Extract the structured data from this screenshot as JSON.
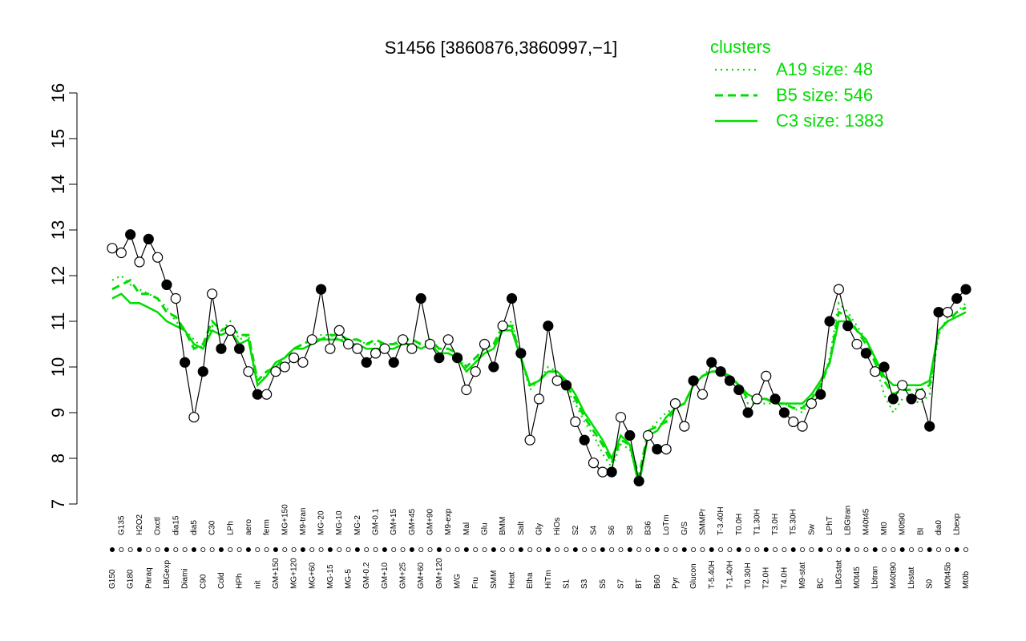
{
  "chart_data": {
    "type": "line",
    "title": "S1456 [3860876,3860997,−1]",
    "ylim": [
      7,
      16
    ],
    "yticks": [
      "7",
      "8",
      "9",
      "10",
      "11",
      "12",
      "13",
      "14",
      "15",
      "16"
    ],
    "categories": [
      "G150",
      "G135",
      "G180",
      "H2O2",
      "Paraq",
      "Oxctl",
      "LBGexp",
      "dia15",
      "Diami",
      "dia5",
      "C90",
      "C30",
      "Cold",
      "LPh",
      "HPh",
      "aero",
      "nit",
      "ferm",
      "GM+150",
      "MG+150",
      "MG+120",
      "M9-tran",
      "MG+60",
      "MG-20",
      "MG-15",
      "MG-10",
      "MG-5",
      "MG-2",
      "GM-0.2",
      "GM-0.1",
      "GM+10",
      "GM+15",
      "GM+25",
      "GM+45",
      "GM+60",
      "GM+90",
      "GM+120",
      "M9-exp",
      "M/G",
      "Mal",
      "Fru",
      "Glu",
      "SMM",
      "BMM",
      "Heat",
      "Salt",
      "Etha",
      "Gly",
      "HiTm",
      "HiOs",
      "S1",
      "S2",
      "S3",
      "S4",
      "S5",
      "S6",
      "S7",
      "S8",
      "BT",
      "B36",
      "B60",
      "LoTm",
      "Pyr",
      "G/S",
      "Glucon",
      "SMMPr",
      "T-5.40H",
      "T-3.40H",
      "T-1.40H",
      "T0.0H",
      "T0.30H",
      "T1.30H",
      "T2.0H",
      "T3.0H",
      "T4.0H",
      "T5.30H",
      "M9-stat",
      "Sw",
      "BC",
      "LPhT",
      "LBGstat",
      "LBGtran",
      "M0t45",
      "M40t45",
      "Lbtran",
      "Mt0",
      "M40t90",
      "M0t90",
      "Lbstat",
      "BI",
      "S0",
      "dia0",
      "M0t45b",
      "Lbexp",
      "Mt0b"
    ],
    "series": [
      {
        "name": "A19 size: 48",
        "style": "dotted",
        "values": [
          11.9,
          12.0,
          11.8,
          11.7,
          11.6,
          11.5,
          11.3,
          11.0,
          10.8,
          10.6,
          10.4,
          10.9,
          10.8,
          11.0,
          10.6,
          10.7,
          9.7,
          9.8,
          10.1,
          10.2,
          10.4,
          10.5,
          10.6,
          10.7,
          10.7,
          10.6,
          10.6,
          10.6,
          10.5,
          10.5,
          10.5,
          10.5,
          10.5,
          10.5,
          10.5,
          10.5,
          10.4,
          10.4,
          10.3,
          9.9,
          10.1,
          10.4,
          10.5,
          10.9,
          11.0,
          10.2,
          9.5,
          9.7,
          10.0,
          9.9,
          9.5,
          9.2,
          8.8,
          8.5,
          8.1,
          7.8,
          8.3,
          8.2,
          7.5,
          8.6,
          8.8,
          9.0,
          9.1,
          9.2,
          9.6,
          9.8,
          10.0,
          10.0,
          9.8,
          9.6,
          9.2,
          9.2,
          9.2,
          9.2,
          9.2,
          9.1,
          9.0,
          9.3,
          9.6,
          10.2,
          11.4,
          11.2,
          10.9,
          10.6,
          10.1,
          9.4,
          9.0,
          9.3,
          9.3,
          9.2,
          9.4,
          10.7,
          11.1,
          11.2,
          11.4
        ]
      },
      {
        "name": "B5 size: 546",
        "style": "dashed",
        "values": [
          11.7,
          11.8,
          11.9,
          11.6,
          11.6,
          11.5,
          11.2,
          11.1,
          10.8,
          10.4,
          10.5,
          11.0,
          10.8,
          10.9,
          10.7,
          10.7,
          9.7,
          9.9,
          10.0,
          10.2,
          10.4,
          10.5,
          10.6,
          10.6,
          10.7,
          10.7,
          10.6,
          10.6,
          10.5,
          10.6,
          10.5,
          10.5,
          10.6,
          10.6,
          10.5,
          10.6,
          10.4,
          10.4,
          10.3,
          10.0,
          10.2,
          10.4,
          10.5,
          10.9,
          10.9,
          10.2,
          9.6,
          9.7,
          9.9,
          9.9,
          9.6,
          9.3,
          8.9,
          8.6,
          8.3,
          7.9,
          8.4,
          8.3,
          7.6,
          8.6,
          8.7,
          8.8,
          9.1,
          9.2,
          9.6,
          9.8,
          9.9,
          9.9,
          9.8,
          9.6,
          9.3,
          9.3,
          9.3,
          9.2,
          9.2,
          9.1,
          9.1,
          9.3,
          9.6,
          10.1,
          11.2,
          11.1,
          10.8,
          10.5,
          10.1,
          9.7,
          9.4,
          9.5,
          9.5,
          9.5,
          9.6,
          10.8,
          11.0,
          11.2,
          11.3
        ]
      },
      {
        "name": "C3 size: 1383",
        "style": "solid",
        "values": [
          11.5,
          11.6,
          11.4,
          11.4,
          11.3,
          11.2,
          11.0,
          10.9,
          10.8,
          10.5,
          10.4,
          10.8,
          10.7,
          10.8,
          10.5,
          10.6,
          9.6,
          9.8,
          10.1,
          10.2,
          10.4,
          10.4,
          10.5,
          10.6,
          10.6,
          10.6,
          10.5,
          10.5,
          10.4,
          10.4,
          10.4,
          10.4,
          10.5,
          10.5,
          10.4,
          10.5,
          10.3,
          10.3,
          10.2,
          9.9,
          10.1,
          10.3,
          10.4,
          10.8,
          10.8,
          10.2,
          9.6,
          9.7,
          9.9,
          9.9,
          9.7,
          9.4,
          9.0,
          8.7,
          8.4,
          8.0,
          8.5,
          8.3,
          7.4,
          8.5,
          8.6,
          8.9,
          9.1,
          9.2,
          9.6,
          9.8,
          9.9,
          9.9,
          9.8,
          9.6,
          9.4,
          9.3,
          9.3,
          9.2,
          9.2,
          9.2,
          9.2,
          9.4,
          9.7,
          10.1,
          11.0,
          11.0,
          10.8,
          10.6,
          10.2,
          9.8,
          9.6,
          9.6,
          9.6,
          9.6,
          9.7,
          10.8,
          11.0,
          11.1,
          11.2
        ]
      }
    ],
    "points": [
      {
        "v": 12.6,
        "f": "o"
      },
      {
        "v": 12.5,
        "f": "o"
      },
      {
        "v": 12.9,
        "f": "f"
      },
      {
        "v": 12.3,
        "f": "o"
      },
      {
        "v": 12.8,
        "f": "f"
      },
      {
        "v": 12.4,
        "f": "o"
      },
      {
        "v": 11.8,
        "f": "f"
      },
      {
        "v": 11.5,
        "f": "o"
      },
      {
        "v": 10.1,
        "f": "f"
      },
      {
        "v": 8.9,
        "f": "o"
      },
      {
        "v": 9.9,
        "f": "f"
      },
      {
        "v": 11.6,
        "f": "o"
      },
      {
        "v": 10.4,
        "f": "f"
      },
      {
        "v": 10.8,
        "f": "o"
      },
      {
        "v": 10.4,
        "f": "f"
      },
      {
        "v": 9.9,
        "f": "o"
      },
      {
        "v": 9.4,
        "f": "f"
      },
      {
        "v": 9.4,
        "f": "o"
      },
      {
        "v": 9.9,
        "f": "o"
      },
      {
        "v": 10.0,
        "f": "o"
      },
      {
        "v": 10.2,
        "f": "o"
      },
      {
        "v": 10.1,
        "f": "o"
      },
      {
        "v": 10.6,
        "f": "o"
      },
      {
        "v": 11.7,
        "f": "f"
      },
      {
        "v": 10.4,
        "f": "o"
      },
      {
        "v": 10.8,
        "f": "o"
      },
      {
        "v": 10.5,
        "f": "o"
      },
      {
        "v": 10.4,
        "f": "o"
      },
      {
        "v": 10.1,
        "f": "f"
      },
      {
        "v": 10.3,
        "f": "o"
      },
      {
        "v": 10.4,
        "f": "o"
      },
      {
        "v": 10.1,
        "f": "f"
      },
      {
        "v": 10.6,
        "f": "o"
      },
      {
        "v": 10.4,
        "f": "o"
      },
      {
        "v": 11.5,
        "f": "f"
      },
      {
        "v": 10.5,
        "f": "o"
      },
      {
        "v": 10.2,
        "f": "f"
      },
      {
        "v": 10.6,
        "f": "o"
      },
      {
        "v": 10.2,
        "f": "f"
      },
      {
        "v": 9.5,
        "f": "o"
      },
      {
        "v": 9.9,
        "f": "o"
      },
      {
        "v": 10.5,
        "f": "o"
      },
      {
        "v": 10.0,
        "f": "f"
      },
      {
        "v": 10.9,
        "f": "o"
      },
      {
        "v": 11.5,
        "f": "f"
      },
      {
        "v": 10.3,
        "f": "f"
      },
      {
        "v": 8.4,
        "f": "o"
      },
      {
        "v": 9.3,
        "f": "o"
      },
      {
        "v": 10.9,
        "f": "f"
      },
      {
        "v": 9.7,
        "f": "o"
      },
      {
        "v": 9.6,
        "f": "f"
      },
      {
        "v": 8.8,
        "f": "o"
      },
      {
        "v": 8.4,
        "f": "f"
      },
      {
        "v": 7.9,
        "f": "o"
      },
      {
        "v": 7.7,
        "f": "o"
      },
      {
        "v": 7.7,
        "f": "f"
      },
      {
        "v": 8.9,
        "f": "o"
      },
      {
        "v": 8.5,
        "f": "f"
      },
      {
        "v": 7.5,
        "f": "f"
      },
      {
        "v": 8.5,
        "f": "o"
      },
      {
        "v": 8.2,
        "f": "f"
      },
      {
        "v": 8.2,
        "f": "o"
      },
      {
        "v": 9.2,
        "f": "o"
      },
      {
        "v": 8.7,
        "f": "o"
      },
      {
        "v": 9.7,
        "f": "f"
      },
      {
        "v": 9.4,
        "f": "o"
      },
      {
        "v": 10.1,
        "f": "f"
      },
      {
        "v": 9.9,
        "f": "f"
      },
      {
        "v": 9.7,
        "f": "f"
      },
      {
        "v": 9.5,
        "f": "f"
      },
      {
        "v": 9.0,
        "f": "f"
      },
      {
        "v": 9.3,
        "f": "o"
      },
      {
        "v": 9.8,
        "f": "o"
      },
      {
        "v": 9.3,
        "f": "f"
      },
      {
        "v": 9.0,
        "f": "f"
      },
      {
        "v": 8.8,
        "f": "o"
      },
      {
        "v": 8.7,
        "f": "o"
      },
      {
        "v": 9.2,
        "f": "o"
      },
      {
        "v": 9.4,
        "f": "f"
      },
      {
        "v": 11.0,
        "f": "f"
      },
      {
        "v": 11.7,
        "f": "o"
      },
      {
        "v": 10.9,
        "f": "f"
      },
      {
        "v": 10.5,
        "f": "o"
      },
      {
        "v": 10.3,
        "f": "f"
      },
      {
        "v": 9.9,
        "f": "o"
      },
      {
        "v": 10.0,
        "f": "f"
      },
      {
        "v": 9.3,
        "f": "f"
      },
      {
        "v": 9.6,
        "f": "o"
      },
      {
        "v": 9.3,
        "f": "f"
      },
      {
        "v": 9.4,
        "f": "o"
      },
      {
        "v": 8.7,
        "f": "f"
      },
      {
        "v": 11.2,
        "f": "f"
      },
      {
        "v": 11.2,
        "f": "o"
      },
      {
        "v": 11.5,
        "f": "f"
      },
      {
        "v": 11.7,
        "f": "f"
      }
    ],
    "legend": {
      "title": "clusters",
      "placement": "top-right"
    },
    "colors": {
      "series": "#00dd00",
      "line": "#000000",
      "point_fill": "#000000",
      "point_open": "#ffffff"
    }
  }
}
